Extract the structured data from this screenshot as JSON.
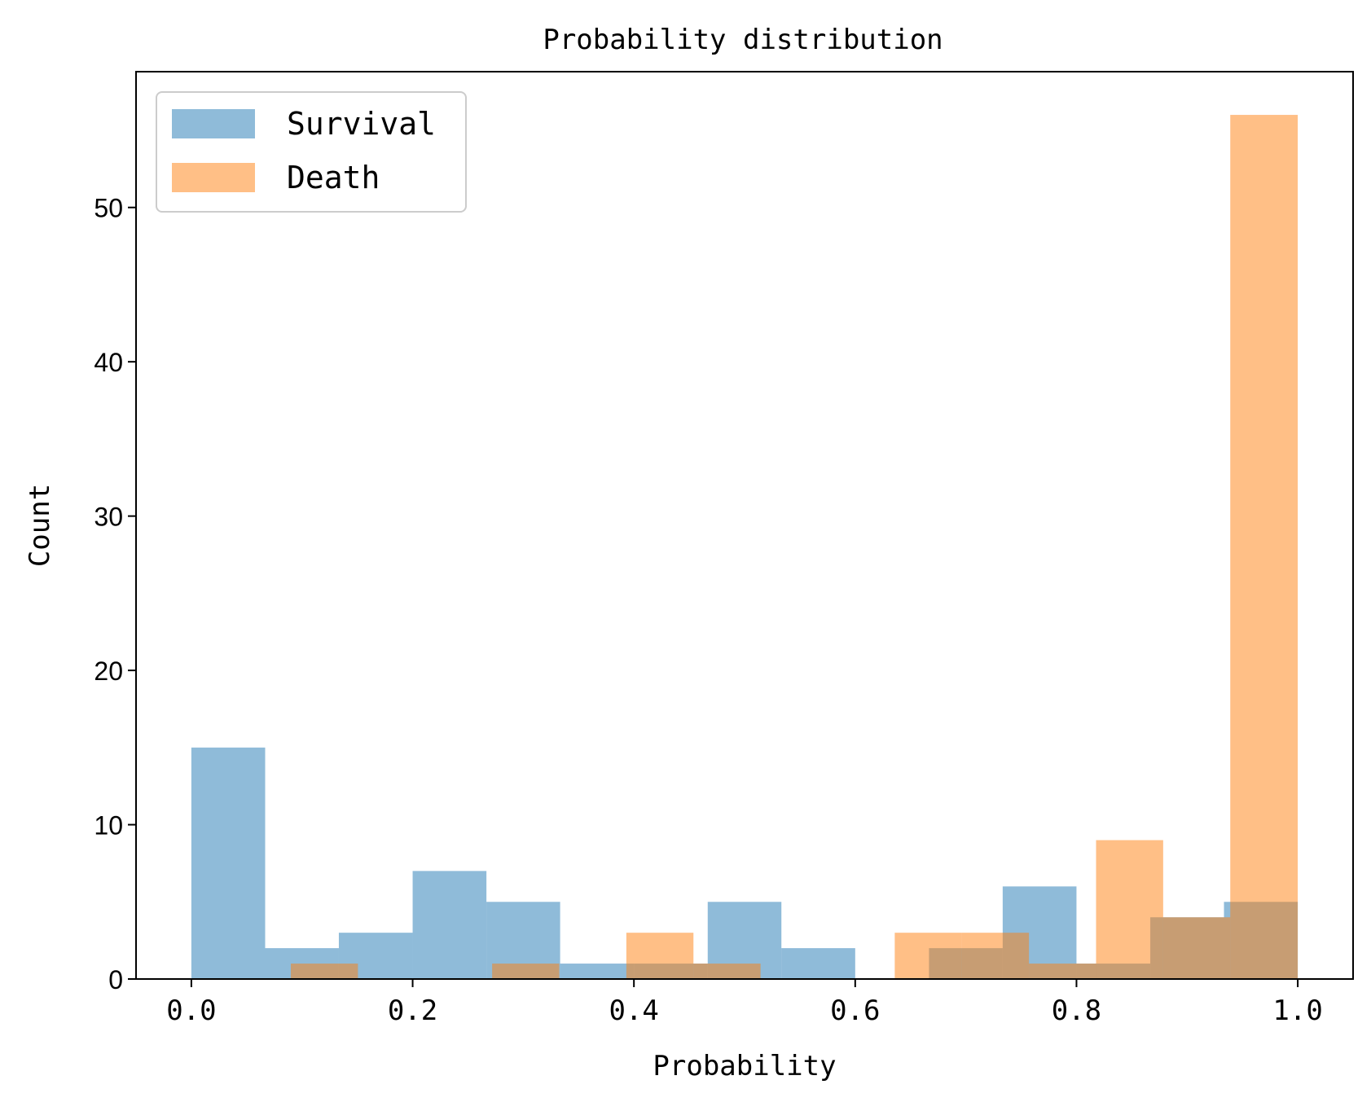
{
  "chart_data": {
    "type": "bar",
    "histogram": true,
    "title": "Probability distribution",
    "xlabel": "Probability",
    "ylabel": "Count",
    "xlim": [
      -0.05,
      1.05
    ],
    "ylim": [
      0,
      58.8
    ],
    "xticks": [
      0.0,
      0.2,
      0.4,
      0.6,
      0.8,
      1.0
    ],
    "xtick_labels": [
      "0.0",
      "0.2",
      "0.4",
      "0.6",
      "0.8",
      "1.0"
    ],
    "yticks": [
      0,
      10,
      20,
      30,
      40,
      50
    ],
    "ytick_labels": [
      "0",
      "10",
      "20",
      "30",
      "40",
      "50"
    ],
    "grid": false,
    "legend_position": "top-left",
    "series": [
      {
        "name": "Survival",
        "color": "#1f77b4",
        "opacity": 0.5,
        "bin_edges": [
          0.0,
          0.0667,
          0.1333,
          0.2,
          0.2667,
          0.3333,
          0.4,
          0.4667,
          0.5333,
          0.6,
          0.6667,
          0.7333,
          0.8,
          0.8667,
          0.9333,
          1.0
        ],
        "counts": [
          15,
          2,
          3,
          7,
          5,
          1,
          1,
          5,
          2,
          0,
          2,
          6,
          1,
          4,
          5
        ]
      },
      {
        "name": "Death",
        "color": "#ff7f0e",
        "opacity": 0.5,
        "bin_edges": [
          0.0899,
          0.15055,
          0.2112,
          0.27185,
          0.3325,
          0.39315,
          0.4538,
          0.51445,
          0.5751,
          0.63575,
          0.6964,
          0.75705,
          0.8177,
          0.87835,
          0.939,
          1.0
        ],
        "counts": [
          1,
          0,
          0,
          1,
          0,
          3,
          1,
          0,
          0,
          3,
          3,
          1,
          9,
          4,
          56
        ]
      }
    ]
  }
}
